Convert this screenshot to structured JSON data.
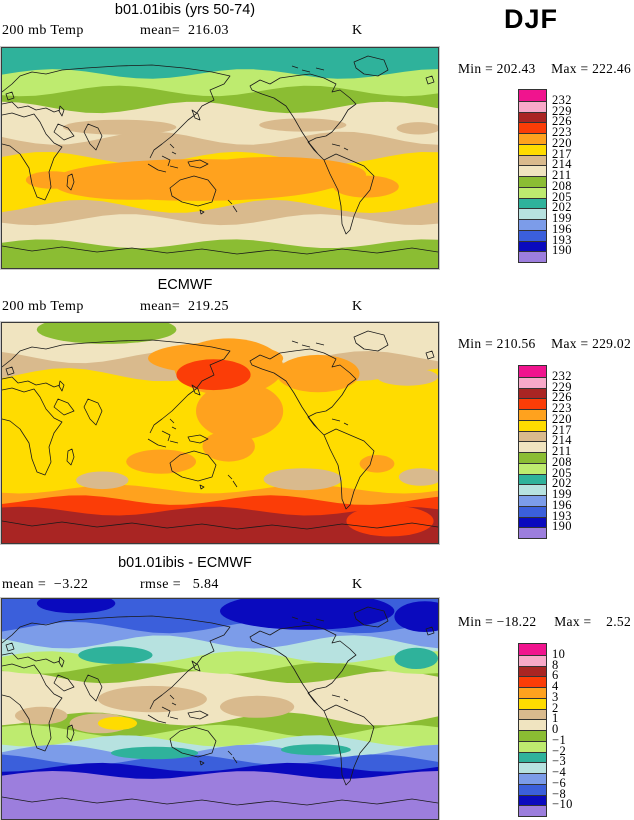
{
  "season_label": "DJF",
  "palette": [
    {
      "name": "magenta",
      "hex": "#F0148E"
    },
    {
      "name": "pink",
      "hex": "#F8A9C9"
    },
    {
      "name": "dark-red",
      "hex": "#A92523"
    },
    {
      "name": "red-orange",
      "hex": "#FB3D07"
    },
    {
      "name": "orange",
      "hex": "#FFA21E"
    },
    {
      "name": "yellow",
      "hex": "#FFDC00"
    },
    {
      "name": "tan",
      "hex": "#D9BA8D"
    },
    {
      "name": "beige",
      "hex": "#F0E4C0"
    },
    {
      "name": "olive-green",
      "hex": "#8BBD33"
    },
    {
      "name": "light-green",
      "hex": "#BEEB6F"
    },
    {
      "name": "teal",
      "hex": "#2FB29B"
    },
    {
      "name": "pale-cyan",
      "hex": "#B7E2E0"
    },
    {
      "name": "light-blue",
      "hex": "#7C9CE9"
    },
    {
      "name": "blue",
      "hex": "#3B5FDB"
    },
    {
      "name": "dark-blue",
      "hex": "#0A0ABE"
    },
    {
      "name": "purple",
      "hex": "#9C7EDD"
    }
  ],
  "panels": [
    {
      "title": "b01.01ibis (yrs 50-74)",
      "row_left": "200 mb Temp",
      "row_mid": "mean=  216.03",
      "units_label": "K",
      "min_text": "Min = 202.43",
      "max_text": "Max = 222.46",
      "levels": [
        "232",
        "229",
        "226",
        "223",
        "220",
        "217",
        "214",
        "211",
        "208",
        "205",
        "202",
        "199",
        "196",
        "193",
        "190"
      ]
    },
    {
      "title": "ECMWF",
      "row_left": "200 mb Temp",
      "row_mid": "mean=  219.25",
      "units_label": "K",
      "min_text": "Min = 210.56",
      "max_text": "Max = 229.02",
      "levels": [
        "232",
        "229",
        "226",
        "223",
        "220",
        "217",
        "214",
        "211",
        "208",
        "205",
        "202",
        "199",
        "196",
        "193",
        "190"
      ]
    },
    {
      "title": "b01.01ibis - ECMWF",
      "row_left": "mean =  −3.22",
      "row_mid": "rmse =   5.84",
      "units_label": "K",
      "min_text": "Min = −18.22",
      "max_text": "Max =    2.52",
      "levels": [
        "10",
        "8",
        "6",
        "4",
        "3",
        "2",
        "1",
        "0",
        "−1",
        "−2",
        "−3",
        "−4",
        "−6",
        "−8",
        "−10"
      ]
    }
  ],
  "chart_data": [
    {
      "type": "heatmap",
      "panel": "model",
      "title": "b01.01ibis (yrs 50-74)",
      "variable": "200 mb Temp",
      "units": "K",
      "season": "DJF",
      "stats": {
        "mean": 216.03,
        "min": 202.43,
        "max": 222.46
      },
      "contour_levels": [
        232,
        229,
        226,
        223,
        220,
        217,
        214,
        211,
        208,
        205,
        202,
        199,
        196,
        193,
        190
      ],
      "legend_position": "right",
      "render": {
        "bands": [
          [
            0,
            1,
            5,
            0,
            0
          ],
          [
            0.72,
            1,
            6,
            0.03,
            2.1
          ],
          [
            0.78,
            1,
            7,
            0.025,
            0.6
          ],
          [
            0.89,
            1,
            8,
            0.02,
            3.4
          ],
          [
            0,
            0.5,
            6,
            0.028,
            1.2
          ],
          [
            0,
            0.41,
            7,
            0.03,
            4.0
          ],
          [
            0,
            0.27,
            8,
            0.026,
            2.6
          ],
          [
            0,
            0.195,
            9,
            0.024,
            5.1
          ],
          [
            0,
            0.118,
            10,
            0.022,
            0.9
          ]
        ],
        "blobs": [
          [
            0.45,
            0.6,
            0.33,
            0.095,
            4
          ],
          [
            0.625,
            0.575,
            0.21,
            0.08,
            4
          ],
          [
            0.3,
            0.62,
            0.18,
            0.07,
            4
          ],
          [
            0.115,
            0.6,
            0.06,
            0.04,
            4
          ],
          [
            0.835,
            0.63,
            0.075,
            0.05,
            4
          ],
          [
            0.27,
            0.36,
            0.13,
            0.034,
            6
          ],
          [
            0.69,
            0.35,
            0.1,
            0.03,
            6
          ],
          [
            0.955,
            0.365,
            0.05,
            0.028,
            6
          ]
        ]
      }
    },
    {
      "type": "heatmap",
      "panel": "reference",
      "title": "ECMWF",
      "variable": "200 mb Temp",
      "units": "K",
      "season": "DJF",
      "stats": {
        "mean": 219.25,
        "min": 210.56,
        "max": 229.02
      },
      "contour_levels": [
        232,
        229,
        226,
        223,
        220,
        217,
        214,
        211,
        208,
        205,
        202,
        199,
        196,
        193,
        190
      ],
      "legend_position": "right",
      "render": {
        "bands": [
          [
            0,
            1,
            5,
            0,
            0
          ],
          [
            0.755,
            1,
            4,
            0.02,
            1.0
          ],
          [
            0.805,
            1,
            3,
            0.022,
            2.2
          ],
          [
            0.855,
            1,
            2,
            0.02,
            4.1
          ],
          [
            0,
            0.235,
            6,
            0.03,
            0.5
          ],
          [
            0,
            0.155,
            7,
            0.028,
            3.2
          ]
        ],
        "blobs": [
          [
            0.24,
            0.03,
            0.16,
            0.065,
            8
          ],
          [
            0.52,
            0.2,
            0.125,
            0.13,
            4
          ],
          [
            0.545,
            0.4,
            0.1,
            0.13,
            4
          ],
          [
            0.49,
            0.16,
            0.155,
            0.07,
            4
          ],
          [
            0.52,
            0.56,
            0.06,
            0.07,
            4
          ],
          [
            0.485,
            0.235,
            0.085,
            0.07,
            3
          ],
          [
            0.725,
            0.23,
            0.095,
            0.085,
            4
          ],
          [
            0.365,
            0.63,
            0.08,
            0.055,
            4
          ],
          [
            0.86,
            0.64,
            0.04,
            0.04,
            4
          ],
          [
            0.23,
            0.715,
            0.06,
            0.04,
            6
          ],
          [
            0.69,
            0.71,
            0.09,
            0.05,
            6
          ],
          [
            0.96,
            0.7,
            0.05,
            0.04,
            6
          ],
          [
            0.93,
            0.245,
            0.07,
            0.04,
            6
          ],
          [
            0.89,
            0.9,
            0.1,
            0.07,
            3
          ]
        ]
      }
    },
    {
      "type": "heatmap",
      "panel": "difference",
      "title": "b01.01ibis - ECMWF",
      "variable": "200 mb Temp",
      "units": "K",
      "season": "DJF",
      "stats": {
        "mean": -3.22,
        "rmse": 5.84,
        "min": -18.22,
        "max": 2.52
      },
      "contour_levels": [
        10,
        8,
        6,
        4,
        3,
        2,
        1,
        0,
        -1,
        -2,
        -3,
        -4,
        -6,
        -8,
        -10
      ],
      "legend_position": "right",
      "render": {
        "bands": [
          [
            0,
            1,
            7,
            0,
            0
          ],
          [
            0.545,
            1,
            8,
            0.03,
            1.8
          ],
          [
            0.6,
            1,
            9,
            0.028,
            3.9
          ],
          [
            0.645,
            1,
            11,
            0.026,
            0.7
          ],
          [
            0.69,
            1,
            12,
            0.028,
            2.9
          ],
          [
            0.73,
            1,
            13,
            0.024,
            5.0
          ],
          [
            0.765,
            1,
            14,
            0.02,
            1.5
          ],
          [
            0.8,
            1,
            15,
            0.018,
            3.0
          ],
          [
            0,
            0.355,
            8,
            0.028,
            2.4
          ],
          [
            0,
            0.315,
            9,
            0.026,
            4.6
          ],
          [
            0,
            0.265,
            11,
            0.028,
            1.1
          ],
          [
            0,
            0.195,
            12,
            0.03,
            3.7
          ],
          [
            0,
            0.13,
            13,
            0.026,
            0.3
          ]
        ],
        "blobs": [
          [
            0.7,
            0.055,
            0.2,
            0.085,
            14
          ],
          [
            0.97,
            0.08,
            0.07,
            0.07,
            14
          ],
          [
            0.17,
            0.02,
            0.09,
            0.045,
            14
          ],
          [
            0.95,
            0.27,
            0.05,
            0.048,
            10
          ],
          [
            0.26,
            0.255,
            0.085,
            0.04,
            10
          ],
          [
            0.35,
            0.7,
            0.1,
            0.028,
            10
          ],
          [
            0.72,
            0.685,
            0.08,
            0.025,
            10
          ],
          [
            0.345,
            0.455,
            0.125,
            0.06,
            6
          ],
          [
            0.585,
            0.49,
            0.085,
            0.05,
            6
          ],
          [
            0.09,
            0.53,
            0.06,
            0.04,
            6
          ],
          [
            0.225,
            0.565,
            0.07,
            0.045,
            6
          ],
          [
            0.265,
            0.565,
            0.045,
            0.03,
            5
          ]
        ]
      }
    }
  ]
}
